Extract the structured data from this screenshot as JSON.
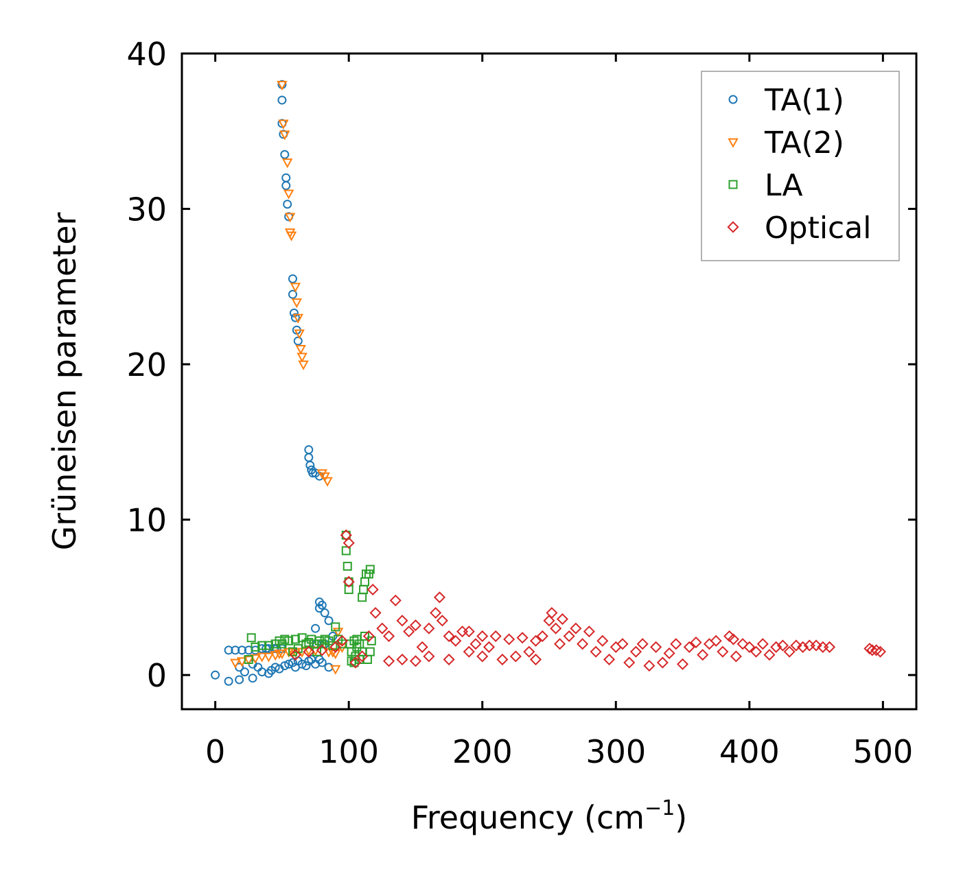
{
  "chart_data": {
    "type": "scatter",
    "xlabel": "Frequency (cm",
    "xlabel_sup": "−1",
    "xlabel_end": ")",
    "ylabel": "Grüneisen parameter",
    "xlim": [
      -25,
      525
    ],
    "ylim": [
      -2.2,
      40
    ],
    "xticks": [
      0,
      100,
      200,
      300,
      400,
      500
    ],
    "yticks": [
      0,
      10,
      20,
      30,
      40
    ],
    "legend_position": "top-right",
    "series": [
      {
        "name": "TA(1)",
        "marker": "circle",
        "color": "#1f77b4",
        "points": [
          [
            0,
            0
          ],
          [
            10,
            -0.4
          ],
          [
            10,
            1.6
          ],
          [
            15,
            1.6
          ],
          [
            18,
            0.5
          ],
          [
            18,
            -0.3
          ],
          [
            20,
            1.6
          ],
          [
            22,
            0.2
          ],
          [
            25,
            1.6
          ],
          [
            28,
            0.7
          ],
          [
            28,
            -0.2
          ],
          [
            30,
            1.6
          ],
          [
            32,
            0.5
          ],
          [
            35,
            1.7
          ],
          [
            35,
            0.2
          ],
          [
            38,
            1.7
          ],
          [
            40,
            0.1
          ],
          [
            40,
            1.7
          ],
          [
            42,
            0.3
          ],
          [
            44,
            1.7
          ],
          [
            45,
            0.5
          ],
          [
            46,
            1.7
          ],
          [
            48,
            0.4
          ],
          [
            50,
            1.7
          ],
          [
            50,
            38.0
          ],
          [
            50,
            37.0
          ],
          [
            50,
            35.5
          ],
          [
            51,
            34.8
          ],
          [
            52,
            33.5
          ],
          [
            53,
            32.0
          ],
          [
            53,
            31.5
          ],
          [
            54,
            30.3
          ],
          [
            55,
            29.5
          ],
          [
            52,
            0.6
          ],
          [
            55,
            0.7
          ],
          [
            58,
            0.8
          ],
          [
            58,
            25.5
          ],
          [
            58,
            24.5
          ],
          [
            59,
            23.3
          ],
          [
            60,
            23.0
          ],
          [
            61,
            22.2
          ],
          [
            62,
            21.5
          ],
          [
            60,
            0.5
          ],
          [
            62,
            0.9
          ],
          [
            65,
            0.7
          ],
          [
            68,
            0.6
          ],
          [
            70,
            14.5
          ],
          [
            70,
            14.0
          ],
          [
            71,
            13.5
          ],
          [
            72,
            13.2
          ],
          [
            73,
            13.0
          ],
          [
            75,
            13.0
          ],
          [
            78,
            12.8
          ],
          [
            70,
            0.9
          ],
          [
            72,
            1.0
          ],
          [
            75,
            0.7
          ],
          [
            75,
            3.0
          ],
          [
            78,
            4.3
          ],
          [
            78,
            4.7
          ],
          [
            80,
            4.5
          ],
          [
            80,
            0.8
          ],
          [
            82,
            4.0
          ],
          [
            85,
            3.5
          ],
          [
            85,
            0.5
          ],
          [
            82,
            2.0
          ],
          [
            88,
            2.5
          ],
          [
            76,
            2.0
          ],
          [
            78,
            1.0
          ]
        ]
      },
      {
        "name": "TA(2)",
        "marker": "triangle-down",
        "color": "#ff7f0e",
        "points": [
          [
            15,
            0.8
          ],
          [
            20,
            0.9
          ],
          [
            25,
            1.0
          ],
          [
            30,
            1.1
          ],
          [
            35,
            1.2
          ],
          [
            40,
            1.2
          ],
          [
            45,
            1.3
          ],
          [
            48,
            1.4
          ],
          [
            50,
            1.4
          ],
          [
            50,
            38.0
          ],
          [
            51,
            35.5
          ],
          [
            52,
            34.8
          ],
          [
            54,
            33.0
          ],
          [
            55,
            31.0
          ],
          [
            56,
            29.5
          ],
          [
            56,
            28.5
          ],
          [
            57,
            28.3
          ],
          [
            55,
            1.5
          ],
          [
            58,
            1.5
          ],
          [
            60,
            25.0
          ],
          [
            61,
            24.0
          ],
          [
            62,
            23.0
          ],
          [
            63,
            22.0
          ],
          [
            64,
            21.0
          ],
          [
            65,
            20.5
          ],
          [
            66,
            20.0
          ],
          [
            60,
            1.5
          ],
          [
            65,
            1.5
          ],
          [
            70,
            1.6
          ],
          [
            75,
            1.6
          ],
          [
            80,
            13.0
          ],
          [
            82,
            12.8
          ],
          [
            84,
            12.5
          ],
          [
            85,
            1.5
          ],
          [
            88,
            1.5
          ],
          [
            90,
            0.4
          ],
          [
            90,
            1.4
          ],
          [
            92,
            2.8
          ],
          [
            95,
            1.8
          ]
        ]
      },
      {
        "name": "LA",
        "marker": "square",
        "color": "#2ca02c",
        "points": [
          [
            25,
            1.0
          ],
          [
            27,
            2.4
          ],
          [
            30,
            1.8
          ],
          [
            35,
            1.9
          ],
          [
            40,
            1.9
          ],
          [
            45,
            2.0
          ],
          [
            48,
            2.2
          ],
          [
            50,
            2.0
          ],
          [
            52,
            2.3
          ],
          [
            55,
            2.2
          ],
          [
            58,
            1.5
          ],
          [
            60,
            2.3
          ],
          [
            62,
            1.7
          ],
          [
            65,
            2.4
          ],
          [
            68,
            2.0
          ],
          [
            70,
            2.1
          ],
          [
            72,
            2.3
          ],
          [
            74,
            2.0
          ],
          [
            76,
            1.5
          ],
          [
            78,
            2.2
          ],
          [
            80,
            2.0
          ],
          [
            82,
            2.3
          ],
          [
            85,
            2.2
          ],
          [
            88,
            1.9
          ],
          [
            90,
            3.1
          ],
          [
            92,
            2.3
          ],
          [
            95,
            2.0
          ],
          [
            98,
            9.0
          ],
          [
            98,
            8.0
          ],
          [
            99,
            7.0
          ],
          [
            100,
            6.0
          ],
          [
            100,
            5.5
          ],
          [
            101,
            2.0
          ],
          [
            102,
            1.5
          ],
          [
            104,
            0.8
          ],
          [
            105,
            1.2
          ],
          [
            106,
            2.3
          ],
          [
            108,
            2.0
          ],
          [
            110,
            1.5
          ],
          [
            110,
            5.0
          ],
          [
            111,
            5.5
          ],
          [
            112,
            6.0
          ],
          [
            113,
            6.5
          ],
          [
            115,
            6.5
          ],
          [
            116,
            6.8
          ],
          [
            114,
            1.0
          ],
          [
            112,
            2.5
          ],
          [
            108,
            1.0
          ],
          [
            106,
            1.8
          ],
          [
            104,
            2.2
          ],
          [
            102,
            0.9
          ],
          [
            116,
            1.5
          ],
          [
            117,
            2.2
          ]
        ]
      },
      {
        "name": "Optical",
        "marker": "diamond",
        "color": "#d62728",
        "points": [
          [
            60,
            1.3
          ],
          [
            70,
            1.5
          ],
          [
            80,
            1.6
          ],
          [
            90,
            1.8
          ],
          [
            95,
            2.2
          ],
          [
            98,
            9.0
          ],
          [
            100,
            8.5
          ],
          [
            100,
            6.0
          ],
          [
            105,
            0.8
          ],
          [
            110,
            1.2
          ],
          [
            115,
            2.5
          ],
          [
            118,
            5.5
          ],
          [
            120,
            4.0
          ],
          [
            125,
            3.0
          ],
          [
            130,
            0.9
          ],
          [
            130,
            2.5
          ],
          [
            135,
            4.8
          ],
          [
            140,
            3.5
          ],
          [
            140,
            1.0
          ],
          [
            145,
            2.8
          ],
          [
            150,
            3.2
          ],
          [
            150,
            0.9
          ],
          [
            155,
            1.8
          ],
          [
            160,
            3.0
          ],
          [
            160,
            1.2
          ],
          [
            165,
            4.0
          ],
          [
            168,
            5.0
          ],
          [
            170,
            3.5
          ],
          [
            175,
            1.0
          ],
          [
            175,
            2.5
          ],
          [
            180,
            2.2
          ],
          [
            185,
            2.8
          ],
          [
            190,
            1.5
          ],
          [
            190,
            2.8
          ],
          [
            195,
            2.0
          ],
          [
            200,
            1.2
          ],
          [
            200,
            2.5
          ],
          [
            205,
            1.8
          ],
          [
            210,
            2.5
          ],
          [
            215,
            1.0
          ],
          [
            220,
            2.3
          ],
          [
            225,
            1.2
          ],
          [
            230,
            2.4
          ],
          [
            235,
            1.5
          ],
          [
            240,
            1.0
          ],
          [
            240,
            2.2
          ],
          [
            245,
            2.5
          ],
          [
            250,
            3.5
          ],
          [
            252,
            4.0
          ],
          [
            255,
            3.0
          ],
          [
            258,
            2.0
          ],
          [
            260,
            3.6
          ],
          [
            265,
            2.5
          ],
          [
            270,
            3.0
          ],
          [
            275,
            2.0
          ],
          [
            280,
            2.8
          ],
          [
            285,
            1.5
          ],
          [
            290,
            2.2
          ],
          [
            295,
            1.0
          ],
          [
            300,
            1.8
          ],
          [
            305,
            2.0
          ],
          [
            310,
            0.8
          ],
          [
            315,
            1.5
          ],
          [
            320,
            2.0
          ],
          [
            325,
            0.6
          ],
          [
            330,
            1.8
          ],
          [
            335,
            0.8
          ],
          [
            340,
            1.4
          ],
          [
            345,
            2.0
          ],
          [
            350,
            0.7
          ],
          [
            355,
            1.8
          ],
          [
            360,
            2.1
          ],
          [
            365,
            1.3
          ],
          [
            370,
            2.0
          ],
          [
            375,
            2.2
          ],
          [
            380,
            1.5
          ],
          [
            385,
            2.5
          ],
          [
            388,
            2.3
          ],
          [
            390,
            1.2
          ],
          [
            395,
            2.0
          ],
          [
            400,
            1.8
          ],
          [
            405,
            1.5
          ],
          [
            410,
            2.0
          ],
          [
            415,
            1.3
          ],
          [
            420,
            1.8
          ],
          [
            425,
            1.9
          ],
          [
            430,
            1.5
          ],
          [
            435,
            1.9
          ],
          [
            440,
            1.8
          ],
          [
            445,
            1.9
          ],
          [
            450,
            1.9
          ],
          [
            455,
            1.8
          ],
          [
            460,
            1.8
          ],
          [
            490,
            1.7
          ],
          [
            492,
            1.6
          ],
          [
            495,
            1.6
          ],
          [
            498,
            1.5
          ]
        ]
      }
    ]
  }
}
